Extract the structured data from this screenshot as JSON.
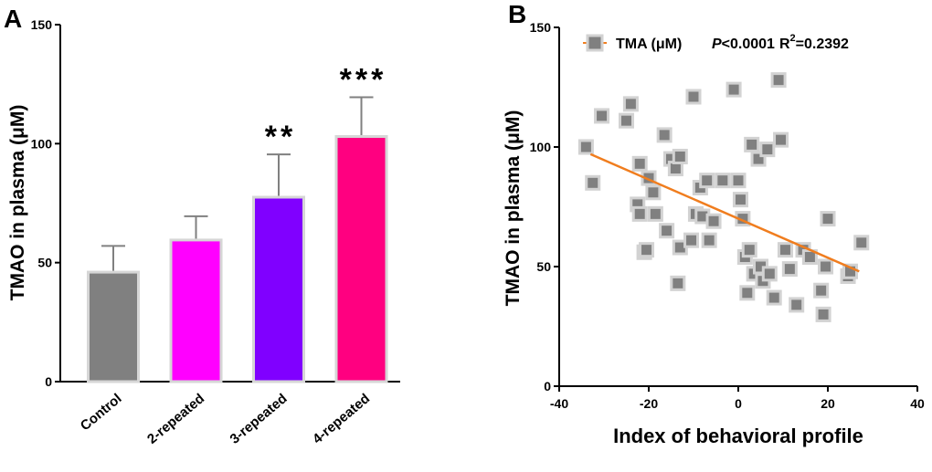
{
  "chart_data": [
    {
      "panel": "A",
      "type": "bar",
      "ylabel": "TMAO in plasma (μM)",
      "xlabel": "",
      "ylim": [
        0,
        150
      ],
      "yticks": [
        0,
        50,
        100,
        150
      ],
      "categories": [
        "Control",
        "2-repeated",
        "3-repeated",
        "4-repeated"
      ],
      "values": [
        46,
        59.5,
        77.5,
        103
      ],
      "errors": [
        11,
        10,
        18,
        16.5
      ],
      "colors": [
        "#808080",
        "#ff00ff",
        "#8000ff",
        "#ff0080"
      ],
      "significance": [
        "",
        "",
        "**",
        "***"
      ]
    },
    {
      "panel": "B",
      "type": "scatter",
      "xlabel": "Index of  behavioral profile",
      "ylabel": "TMAO in plasma (μM)",
      "xlim": [
        -40,
        40
      ],
      "ylim": [
        0,
        150
      ],
      "xticks": [
        -40,
        -20,
        0,
        20,
        40
      ],
      "yticks": [
        0,
        50,
        100,
        150
      ],
      "legend": {
        "label": "TMA (μM)",
        "placement": "top-left"
      },
      "annotation": {
        "p_label": "P",
        "p_value": "<0.0001",
        "r2_label": "R",
        "r2_sup": "2",
        "r2_value": "=0.2392"
      },
      "regression": {
        "x": [
          -33,
          27
        ],
        "y": [
          97,
          48
        ]
      },
      "marker_color": "#808080",
      "line_color": "#f07d1e",
      "points": [
        {
          "x": -34,
          "y": 100
        },
        {
          "x": -32.5,
          "y": 85
        },
        {
          "x": -30.5,
          "y": 113
        },
        {
          "x": -25,
          "y": 111
        },
        {
          "x": -24,
          "y": 118
        },
        {
          "x": -22.5,
          "y": 76
        },
        {
          "x": -22,
          "y": 72
        },
        {
          "x": -22,
          "y": 93
        },
        {
          "x": -21,
          "y": 56
        },
        {
          "x": -20.5,
          "y": 57
        },
        {
          "x": -20,
          "y": 87
        },
        {
          "x": -19,
          "y": 81
        },
        {
          "x": -18.5,
          "y": 72
        },
        {
          "x": -16.5,
          "y": 105
        },
        {
          "x": -16,
          "y": 65
        },
        {
          "x": -15,
          "y": 95
        },
        {
          "x": -14,
          "y": 91
        },
        {
          "x": -13,
          "y": 96
        },
        {
          "x": -13,
          "y": 58
        },
        {
          "x": -13.5,
          "y": 43
        },
        {
          "x": -10.5,
          "y": 61
        },
        {
          "x": -10,
          "y": 121
        },
        {
          "x": -9.5,
          "y": 72
        },
        {
          "x": -8.5,
          "y": 83
        },
        {
          "x": -8,
          "y": 71
        },
        {
          "x": -7,
          "y": 86
        },
        {
          "x": -6.5,
          "y": 61
        },
        {
          "x": -5.5,
          "y": 69
        },
        {
          "x": -3.5,
          "y": 86
        },
        {
          "x": -1,
          "y": 124
        },
        {
          "x": 0,
          "y": 86
        },
        {
          "x": 0.5,
          "y": 78
        },
        {
          "x": 1,
          "y": 70
        },
        {
          "x": 1.5,
          "y": 54
        },
        {
          "x": 2,
          "y": 39
        },
        {
          "x": 2.5,
          "y": 57
        },
        {
          "x": 3,
          "y": 101
        },
        {
          "x": 3.5,
          "y": 47
        },
        {
          "x": 4.5,
          "y": 95
        },
        {
          "x": 5,
          "y": 50
        },
        {
          "x": 5.5,
          "y": 44
        },
        {
          "x": 6.5,
          "y": 99
        },
        {
          "x": 7,
          "y": 47
        },
        {
          "x": 8,
          "y": 37
        },
        {
          "x": 9,
          "y": 128
        },
        {
          "x": 9.5,
          "y": 103
        },
        {
          "x": 10.5,
          "y": 57
        },
        {
          "x": 11.5,
          "y": 49
        },
        {
          "x": 13,
          "y": 34
        },
        {
          "x": 14.5,
          "y": 57
        },
        {
          "x": 16,
          "y": 54
        },
        {
          "x": 18.5,
          "y": 40
        },
        {
          "x": 19,
          "y": 30
        },
        {
          "x": 20,
          "y": 70
        },
        {
          "x": 19.5,
          "y": 50
        },
        {
          "x": 24.5,
          "y": 46
        },
        {
          "x": 25,
          "y": 48
        },
        {
          "x": 27.5,
          "y": 60
        }
      ]
    }
  ]
}
